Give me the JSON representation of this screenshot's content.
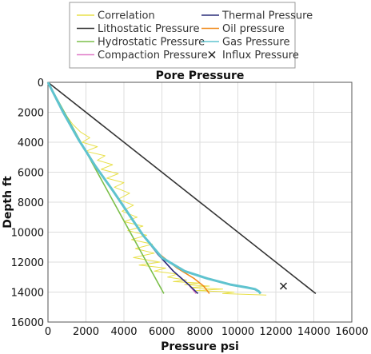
{
  "chart_data": {
    "type": "line",
    "title": "Pore Pressure",
    "xlabel": "Pressure psi",
    "ylabel": "Depth ft",
    "xlim": [
      0,
      16000
    ],
    "ylim": [
      16000,
      0
    ],
    "y_inverted": true,
    "xticks": [
      0,
      2000,
      4000,
      6000,
      8000,
      10000,
      12000,
      14000,
      16000
    ],
    "yticks": [
      0,
      2000,
      4000,
      6000,
      8000,
      10000,
      12000,
      14000,
      16000
    ],
    "grid": true,
    "legend_placement": "top",
    "series": [
      {
        "name": "Correlation",
        "color": "#e8e04a",
        "style": "line",
        "x": [
          0,
          600,
          900,
          1300,
          1700,
          2200,
          1800,
          2600,
          2000,
          3000,
          2600,
          3400,
          2800,
          3700,
          3100,
          4000,
          3500,
          4300,
          3700,
          4500,
          3900,
          4700,
          4000,
          5000,
          4200,
          5200,
          4400,
          5500,
          4600,
          5600,
          4500,
          5900,
          4800,
          6200,
          5600,
          6800,
          6300,
          7300,
          6600,
          8000,
          7200,
          8500,
          7500,
          9200,
          7800,
          9800,
          9200,
          11500
        ],
        "y": [
          0,
          1500,
          2100,
          2800,
          3300,
          3700,
          4000,
          4300,
          4600,
          4900,
          5200,
          5500,
          5800,
          6100,
          6400,
          6700,
          7000,
          7400,
          7800,
          8200,
          8600,
          9000,
          9300,
          9600,
          9900,
          10200,
          10500,
          10800,
          11100,
          11400,
          11700,
          12000,
          12200,
          12400,
          12600,
          12800,
          13000,
          13200,
          13300,
          13400,
          13500,
          13600,
          13700,
          13800,
          13900,
          14000,
          14100,
          14200
        ]
      },
      {
        "name": "Thermal Pressure",
        "color": "#2b2f7a",
        "style": "line",
        "x": [
          0,
          800,
          1600,
          2500,
          3400,
          4200,
          5000,
          5800,
          6600,
          7400,
          7900
        ],
        "y": [
          0,
          2000,
          3800,
          5600,
          7200,
          8700,
          10200,
          11500,
          12600,
          13500,
          14100
        ]
      },
      {
        "name": "Lithostatic Pressure",
        "color": "#333333",
        "style": "line",
        "x": [
          0,
          14100
        ],
        "y": [
          0,
          14100
        ]
      },
      {
        "name": "Oil pressure",
        "color": "#f08a1c",
        "style": "line",
        "x": [
          0,
          800,
          1600,
          2500,
          3400,
          4200,
          5000,
          5900,
          6800,
          7700,
          8200,
          8500
        ],
        "y": [
          0,
          2000,
          3800,
          5600,
          7200,
          8700,
          10200,
          11500,
          12400,
          13100,
          13600,
          14100
        ]
      },
      {
        "name": "Hydrostatic Pressure",
        "color": "#7bbf4a",
        "style": "line",
        "x": [
          0,
          6100
        ],
        "y": [
          0,
          14100
        ]
      },
      {
        "name": "Gas Pressure",
        "color": "#5fc3cf",
        "style": "line",
        "x": [
          0,
          800,
          1600,
          2500,
          3400,
          4200,
          5000,
          6000,
          7200,
          8400,
          9600,
          10500,
          10900,
          11100,
          11200
        ],
        "y": [
          0,
          2000,
          3800,
          5600,
          7200,
          8700,
          10200,
          11700,
          12600,
          13100,
          13500,
          13700,
          13800,
          13950,
          14100
        ]
      },
      {
        "name": "Compaction Pressure",
        "color": "#e07ac8",
        "style": "line",
        "x": [
          0,
          800,
          1600,
          2500,
          3400,
          4200,
          5000,
          5800,
          6600,
          7400,
          7800
        ],
        "y": [
          0,
          2000,
          3800,
          5600,
          7200,
          8700,
          10200,
          11500,
          12600,
          13500,
          14100
        ]
      },
      {
        "name": "Influx Pressure",
        "color": "#222222",
        "style": "marker",
        "x": [
          12400
        ],
        "y": [
          13600
        ]
      }
    ]
  }
}
